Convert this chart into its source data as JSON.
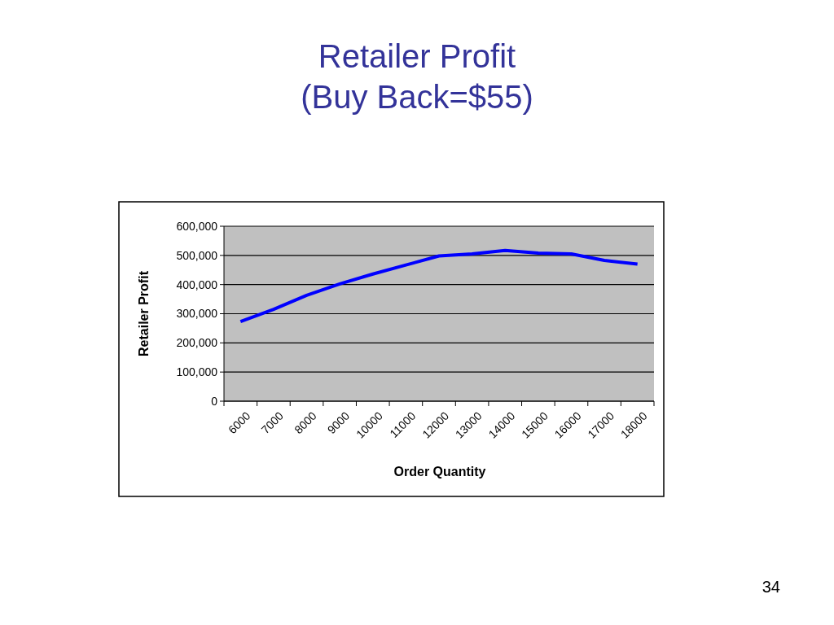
{
  "chart_data": {
    "type": "line",
    "title": "Retailer Profit\n(Buy Back=$55)",
    "xlabel": "Order Quantity",
    "ylabel": "Retailer Profit",
    "categories": [
      "6000",
      "7000",
      "8000",
      "9000",
      "10000",
      "11000",
      "12000",
      "13000",
      "14000",
      "15000",
      "16000",
      "17000",
      "18000"
    ],
    "series": [
      {
        "color": "#0000ff",
        "values": [
          273000,
          315000,
          363000,
          402000,
          436000,
          467000,
          498000,
          505000,
          517000,
          508000,
          505000,
          483000,
          470000
        ]
      }
    ],
    "ylim": [
      0,
      600000
    ],
    "yticks": [
      {
        "value": 0,
        "label": "0"
      },
      {
        "value": 100000,
        "label": "100,000"
      },
      {
        "value": 200000,
        "label": "200,000"
      },
      {
        "value": 300000,
        "label": "300,000"
      },
      {
        "value": 400000,
        "label": "400,000"
      },
      {
        "value": 500000,
        "label": "500,000"
      },
      {
        "value": 600000,
        "label": "600,000"
      }
    ],
    "grid": "y",
    "legend": false,
    "marker": "none",
    "line_style": "solid",
    "annotations": [
      "34"
    ]
  }
}
